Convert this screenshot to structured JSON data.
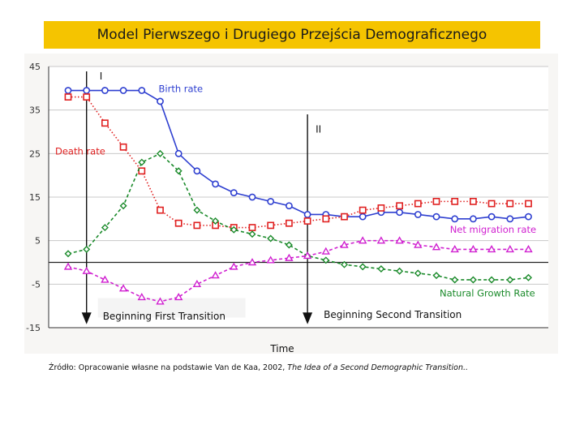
{
  "title": "Model Pierwszego i Drugiego Przejścia Demograficznego",
  "source": {
    "prefix": "Źródło: Opracowanie własne na podstawie Van de Kaa, 2002, ",
    "italic": "The Idea of a Second Demographic Transition.."
  },
  "chart_data": {
    "type": "line",
    "xlabel": "Time",
    "ylabel": "",
    "ylim": [
      -15,
      45
    ],
    "yticks": [
      -15,
      -5,
      5,
      15,
      25,
      35,
      45
    ],
    "grid": true,
    "x": [
      1,
      2,
      3,
      4,
      5,
      6,
      7,
      8,
      9,
      10,
      11,
      12,
      13,
      14,
      15,
      16,
      17,
      18,
      19,
      20,
      21,
      22,
      23,
      24,
      25,
      26
    ],
    "series": [
      {
        "name": "Birth rate",
        "color": "#2e3fd0",
        "marker": "circle",
        "line": "solid",
        "values": [
          39.5,
          39.5,
          39.5,
          39.5,
          39.5,
          37,
          25,
          21,
          18,
          16,
          15,
          14,
          13,
          11,
          11,
          10.5,
          10.5,
          11.5,
          11.5,
          11,
          10.5,
          10,
          10,
          10.5,
          10,
          10.5
        ]
      },
      {
        "name": "Death rate",
        "color": "#e02020",
        "marker": "square",
        "line": "dotted",
        "values": [
          38,
          38,
          32,
          26.5,
          21,
          12,
          9,
          8.5,
          8.5,
          8,
          8,
          8.5,
          9,
          9.5,
          10,
          10.5,
          12,
          12.5,
          13,
          13.5,
          14,
          14,
          14,
          13.5,
          13.5,
          13.5
        ]
      },
      {
        "name": "Natural Growth Rate",
        "color": "#1a8a2a",
        "marker": "diamond",
        "line": "dashed",
        "values": [
          2,
          3,
          8,
          13,
          23,
          25,
          21,
          12,
          9.5,
          7.5,
          6.5,
          5.5,
          4,
          1.5,
          0.5,
          -0.5,
          -1,
          -1.5,
          -2,
          -2.5,
          -3,
          -4,
          -4,
          -4,
          -4,
          -3.5
        ]
      },
      {
        "name": "Net migration rate",
        "color": "#d020d0",
        "marker": "triangle",
        "line": "dashed",
        "values": [
          -1,
          -2,
          -4,
          -6,
          -8,
          -9,
          -8,
          -5,
          -3,
          -1,
          0,
          0.5,
          1,
          1.5,
          2.5,
          4,
          5,
          5,
          5,
          4,
          3.5,
          3,
          3,
          3,
          3,
          3
        ]
      }
    ],
    "annotations": [
      {
        "label": "I",
        "x": 2
      },
      {
        "label": "II",
        "x": 14
      },
      {
        "label": "Beginning First Transition",
        "x": 2
      },
      {
        "label": "Beginning Second Transition",
        "x": 14
      }
    ]
  }
}
